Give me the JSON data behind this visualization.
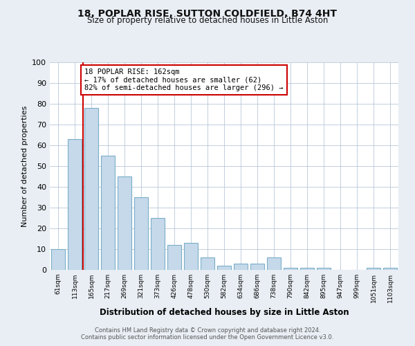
{
  "title": "18, POPLAR RISE, SUTTON COLDFIELD, B74 4HT",
  "subtitle": "Size of property relative to detached houses in Little Aston",
  "xlabel": "Distribution of detached houses by size in Little Aston",
  "ylabel": "Number of detached properties",
  "bar_labels": [
    "61sqm",
    "113sqm",
    "165sqm",
    "217sqm",
    "269sqm",
    "321sqm",
    "373sqm",
    "426sqm",
    "478sqm",
    "530sqm",
    "582sqm",
    "634sqm",
    "686sqm",
    "738sqm",
    "790sqm",
    "842sqm",
    "895sqm",
    "947sqm",
    "999sqm",
    "1051sqm",
    "1103sqm"
  ],
  "bar_values": [
    10,
    63,
    78,
    55,
    45,
    35,
    25,
    12,
    13,
    6,
    2,
    3,
    3,
    6,
    1,
    1,
    1,
    0,
    0,
    1,
    1
  ],
  "bar_color": "#c5d9ea",
  "bar_edge_color": "#7aaec8",
  "property_line_x": 1.5,
  "annotation_text": "18 POPLAR RISE: 162sqm\n← 17% of detached houses are smaller (62)\n82% of semi-detached houses are larger (296) →",
  "annotation_box_color": "#ffffff",
  "annotation_box_edge_color": "#cc0000",
  "property_line_color": "#cc0000",
  "ylim": [
    0,
    100
  ],
  "yticks": [
    0,
    10,
    20,
    30,
    40,
    50,
    60,
    70,
    80,
    90,
    100
  ],
  "footer_line1": "Contains HM Land Registry data © Crown copyright and database right 2024.",
  "footer_line2": "Contains public sector information licensed under the Open Government Licence v3.0.",
  "background_color": "#e8eef4",
  "plot_bg_color": "#ffffff"
}
